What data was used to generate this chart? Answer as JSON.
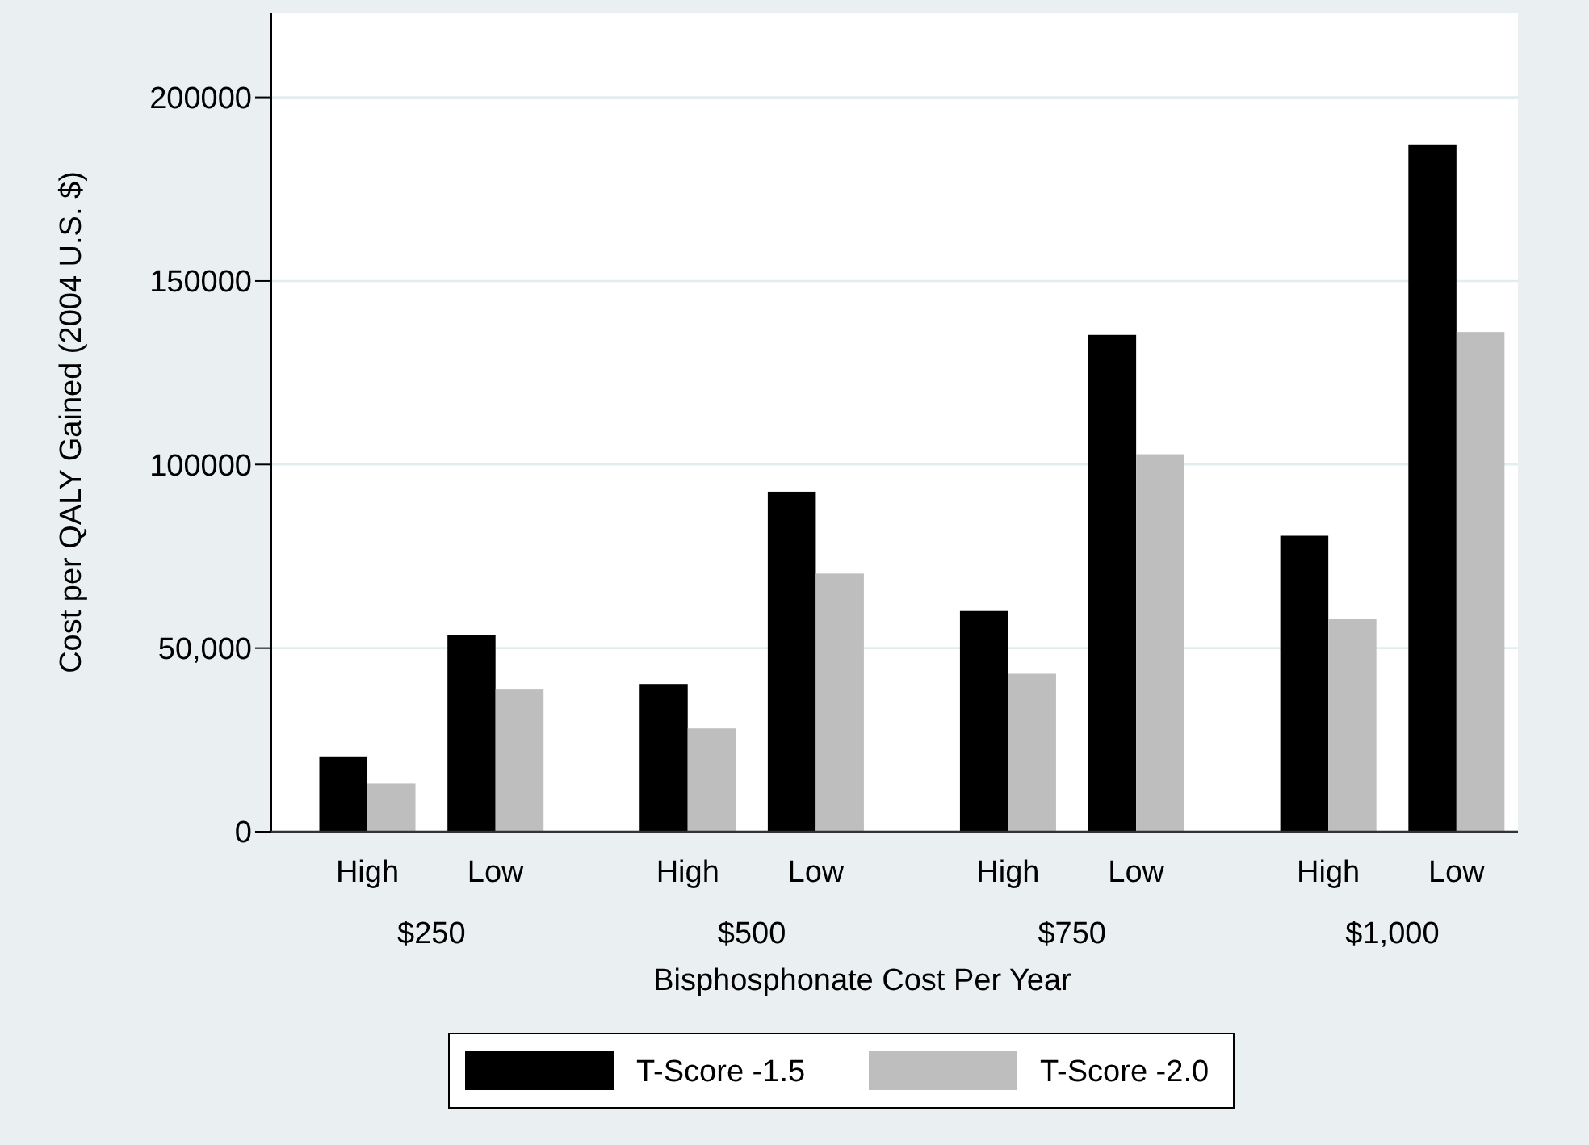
{
  "chart_data": {
    "type": "bar",
    "xlabel": "Bisphosphonate Cost Per Year",
    "ylabel": "Cost per QALY Gained (2004 U.S. $)",
    "categories": [
      "High",
      "Low",
      "High",
      "Low",
      "High",
      "Low",
      "High",
      "Low"
    ],
    "annotations": [
      "$250",
      "$500",
      "$750",
      "$1,000"
    ],
    "series": [
      {
        "name": "T-Score -1.5",
        "color": "#000000",
        "values": [
          20500,
          53600,
          40200,
          92600,
          60100,
          135300,
          80600,
          187200
        ]
      },
      {
        "name": "T-Score -2.0",
        "color": "#bebebe",
        "values": [
          13100,
          38900,
          28100,
          70300,
          43000,
          102800,
          57900,
          136100
        ]
      }
    ],
    "ylim": [
      0,
      223000
    ],
    "yticks": [
      0,
      {
        "value": 50000,
        "label": "50,000"
      },
      100000,
      150000,
      200000
    ],
    "grid": "y",
    "legend": "bottom"
  }
}
